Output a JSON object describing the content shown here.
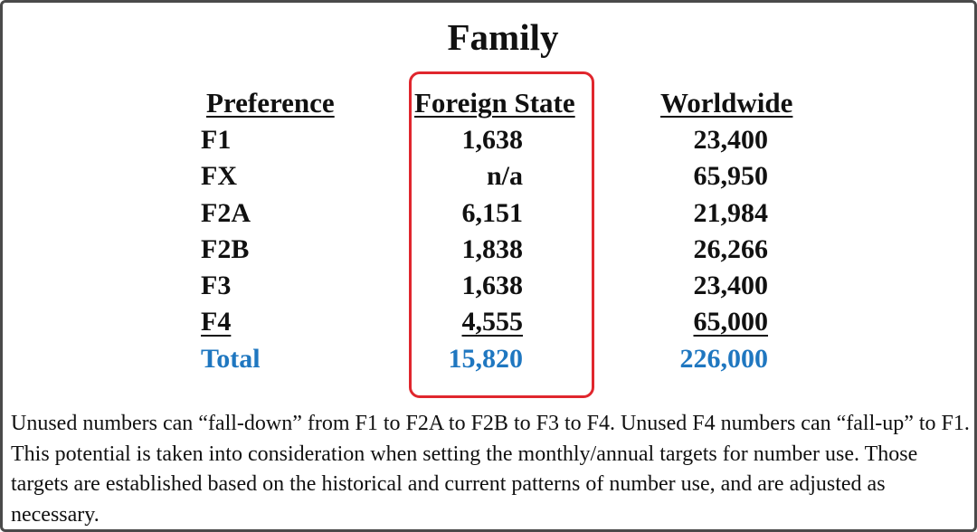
{
  "title": "Family",
  "columns": {
    "preference": "Preference",
    "foreign_state": "Foreign State",
    "worldwide": "Worldwide"
  },
  "rows": [
    {
      "preference": "F1",
      "foreign_state": "1,638",
      "worldwide": "23,400"
    },
    {
      "preference": "FX",
      "foreign_state": "n/a",
      "worldwide": "65,950"
    },
    {
      "preference": "F2A",
      "foreign_state": "6,151",
      "worldwide": "21,984"
    },
    {
      "preference": "F2B",
      "foreign_state": "1,838",
      "worldwide": "26,266"
    },
    {
      "preference": "F3",
      "foreign_state": "1,638",
      "worldwide": "23,400"
    },
    {
      "preference": "F4",
      "foreign_state": "4,555",
      "worldwide": "65,000"
    }
  ],
  "total": {
    "label": "Total",
    "foreign_state": "15,820",
    "worldwide": "226,000"
  },
  "note": "Unused numbers can “fall-down” from F1 to F2A to F2B to F3 to F4. Unused F4 numbers can “fall-up” to F1.  This potential is taken into consideration when setting the monthly/annual targets for number use.   Those targets are established based on the historical and current patterns of number use, and are adjusted as necessary.",
  "colors": {
    "total": "#1f77c0",
    "highlight_border": "#e0262d",
    "frame_border": "#4a4a4a"
  }
}
